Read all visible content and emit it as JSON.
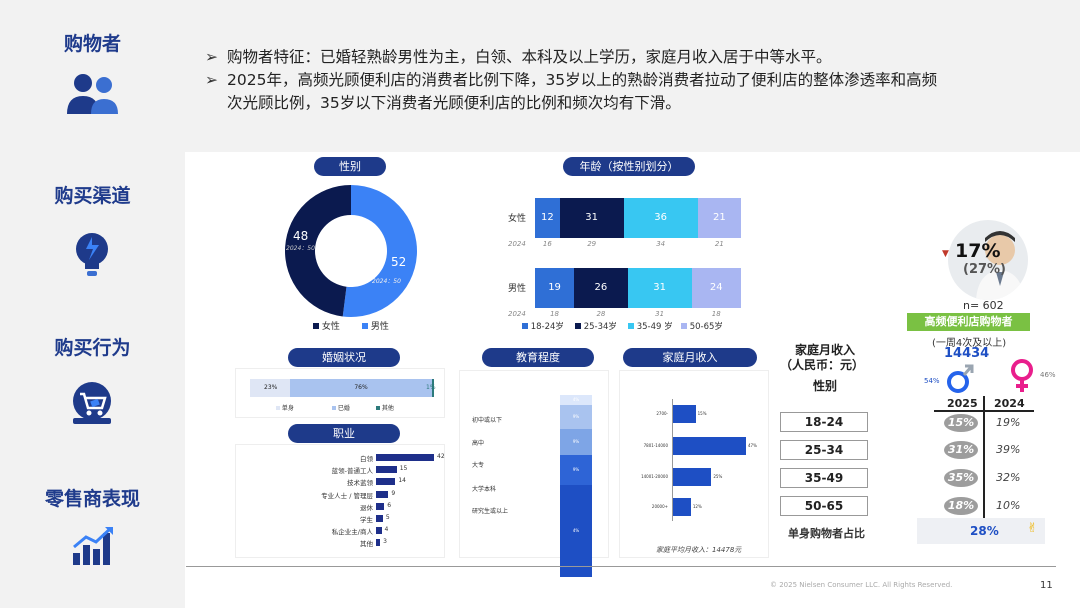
{
  "sidebar": {
    "items": [
      {
        "label": "购物者",
        "icon": "people-icon"
      },
      {
        "label": "购买渠道",
        "icon": "lightbulb-icon"
      },
      {
        "label": "购买行为",
        "icon": "shopping-cart-icon"
      },
      {
        "label": "零售商表现",
        "icon": "growth-chart-icon"
      }
    ]
  },
  "header": {
    "bullet1": "购物者特征：已婚轻熟龄男性为主，白领、本科及以上学历，家庭月收入居于中等水平。",
    "bullet2a": "2025年，高频光顾便利店的消费者比例下降，35岁以上的熟龄消费者拉动了便利店的整体渗透率和高频",
    "bullet2b": "次光顾比例，35岁以下消费者光顾便利店的比例和频次均有下滑。"
  },
  "gender": {
    "pill": "性别",
    "female": {
      "label": "女性",
      "value": 48,
      "prev": "2024：50",
      "color": "#0b1a4f"
    },
    "male": {
      "label": "男性",
      "value": 52,
      "prev": "2024：50",
      "color": "#3b82f6"
    }
  },
  "age": {
    "pill": "年龄（按性别划分）",
    "rows": [
      {
        "label": "女性",
        "values": [
          12,
          31,
          36,
          21
        ],
        "prev": [
          16,
          29,
          34,
          21
        ]
      },
      {
        "label": "男性",
        "values": [
          19,
          26,
          31,
          24
        ],
        "prev": [
          18,
          28,
          31,
          18
        ]
      }
    ],
    "prev_label": "2024",
    "legend": [
      "18-24岁",
      "25-34岁",
      "35-49 岁",
      "50-65岁"
    ],
    "colors": [
      "#2f6fd6",
      "#0b1a4f",
      "#38c7f2",
      "#a9b6f2"
    ]
  },
  "marriage": {
    "pill": "婚姻状况",
    "values": [
      "23%",
      "76%",
      "1%"
    ],
    "legend": [
      "单身",
      "已婚",
      "其他"
    ]
  },
  "job": {
    "pill": "职业",
    "items": [
      {
        "label": "白领",
        "value": 42
      },
      {
        "label": "蓝领-普通工人",
        "value": 15
      },
      {
        "label": "技术蓝领",
        "value": 14
      },
      {
        "label": "专业人士 / 管理层",
        "value": 9
      },
      {
        "label": "退休",
        "value": 6
      },
      {
        "label": "学生",
        "value": 5
      },
      {
        "label": "私企业主/商人",
        "value": 4
      },
      {
        "label": "其他",
        "value": 3
      }
    ]
  },
  "education": {
    "pill": "教育程度",
    "levels": [
      "初中或以下",
      "高中",
      "大专",
      "大学本科",
      "研究生或以上"
    ],
    "values": [
      "4%",
      "9%",
      "9%",
      "9%",
      "4%"
    ]
  },
  "income": {
    "pill": "家庭月收入",
    "rows": [
      {
        "label": "2700-",
        "value": "15%"
      },
      {
        "label": "7801-14000",
        "value": "47%"
      },
      {
        "label": "14001-20000",
        "value": "25%"
      },
      {
        "label": "20000+",
        "value": "12%"
      }
    ],
    "footer": "家庭平均月收入：14478元"
  },
  "right": {
    "headline": "17%",
    "prev": "(27%)",
    "n": "n= 602",
    "badge": "高频便利店购物者",
    "freq": "(一周4次及以上)",
    "income_val": "14434",
    "male_pct": "54%",
    "female_pct": "46%",
    "col1": "2025",
    "col2": "2024",
    "labels": [
      "家庭月收入",
      "（人民币：元）",
      "性别"
    ],
    "ages": [
      "18-24",
      "25-34",
      "35-49",
      "50-65"
    ],
    "v25": [
      "15%",
      "31%",
      "35%",
      "18%"
    ],
    "v24": [
      "19%",
      "39%",
      "32%",
      "10%"
    ],
    "single_label": "单身购物者占比",
    "single_val": "28%"
  },
  "footer": {
    "copyright": "© 2025 Nielsen Consumer LLC. All Rights Reserved.",
    "page": "11"
  }
}
